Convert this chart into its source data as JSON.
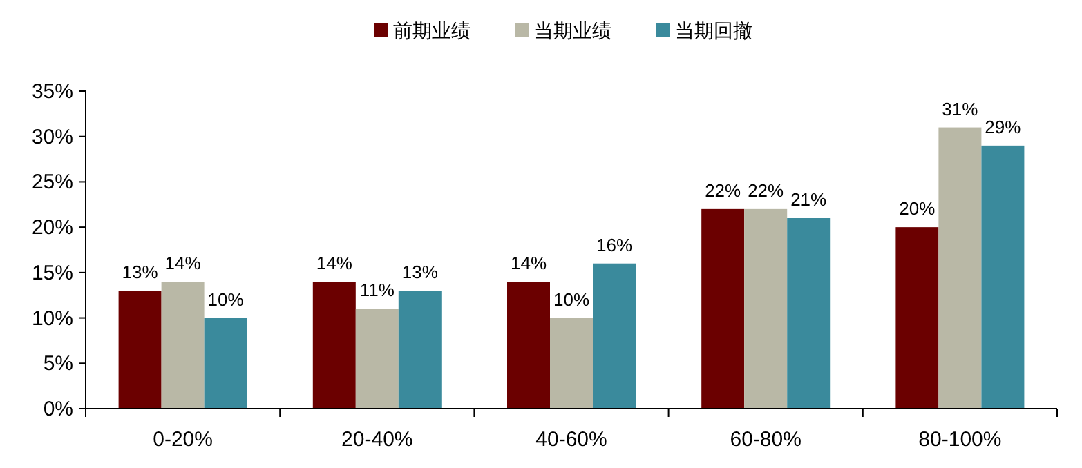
{
  "chart_data": {
    "type": "bar",
    "categories": [
      "0-20%",
      "20-40%",
      "40-60%",
      "60-80%",
      "80-100%"
    ],
    "series": [
      {
        "name": "前期业绩",
        "color": "#6b0000",
        "values": [
          13,
          14,
          14,
          22,
          20
        ],
        "value_labels": [
          "13%",
          "14%",
          "14%",
          "22%",
          "20%"
        ]
      },
      {
        "name": "当期业绩",
        "color": "#b9b8a6",
        "values": [
          14,
          11,
          10,
          22,
          31
        ],
        "value_labels": [
          "14%",
          "11%",
          "10%",
          "22%",
          "31%"
        ]
      },
      {
        "name": "当期回撤",
        "color": "#3a8a9c",
        "values": [
          10,
          13,
          16,
          21,
          29
        ],
        "value_labels": [
          "10%",
          "13%",
          "16%",
          "21%",
          "29%"
        ]
      }
    ],
    "ylim": [
      0,
      35
    ],
    "yticks": [
      {
        "value": 0,
        "label": "0%"
      },
      {
        "value": 5,
        "label": "5%"
      },
      {
        "value": 10,
        "label": "10%"
      },
      {
        "value": 15,
        "label": "15%"
      },
      {
        "value": 20,
        "label": "20%"
      },
      {
        "value": 25,
        "label": "25%"
      },
      {
        "value": 30,
        "label": "30%"
      },
      {
        "value": 35,
        "label": "35%"
      }
    ],
    "legend": "top",
    "grid": false
  }
}
